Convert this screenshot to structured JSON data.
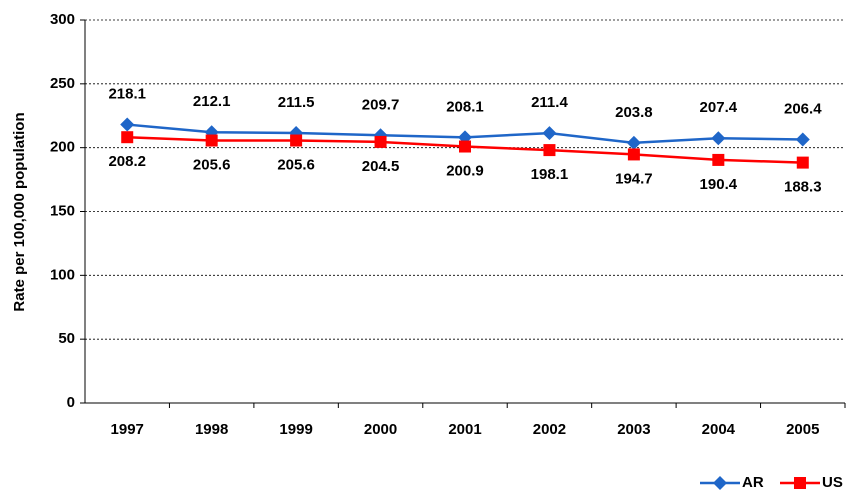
{
  "chart_data": {
    "type": "line",
    "y_label": "Rate per 100,000 population",
    "categories": [
      "1997",
      "1998",
      "1999",
      "2000",
      "2001",
      "2002",
      "2003",
      "2004",
      "2005"
    ],
    "series": [
      {
        "name": "AR",
        "color": "#1f66c8",
        "marker": "diamond",
        "label_position": "above",
        "values": [
          218.1,
          212.1,
          211.5,
          209.7,
          208.1,
          211.4,
          203.8,
          207.4,
          206.4
        ]
      },
      {
        "name": "US",
        "color": "#ff0000",
        "marker": "square",
        "label_position": "below",
        "values": [
          208.2,
          205.6,
          205.6,
          204.5,
          200.9,
          198.1,
          194.7,
          190.4,
          188.3
        ]
      }
    ],
    "ylim": [
      0,
      300
    ],
    "yticks": [
      0,
      50,
      100,
      150,
      200,
      250,
      300
    ],
    "grid": true,
    "legend": "bottom-right"
  }
}
